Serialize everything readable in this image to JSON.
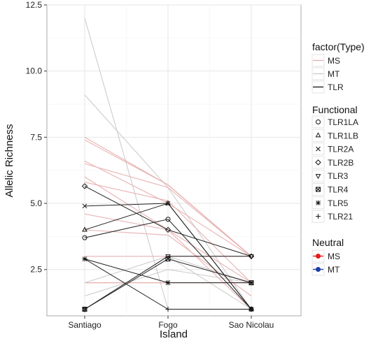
{
  "chart_data": {
    "type": "line",
    "xlabel": "Island",
    "ylabel": "Allelic Richness",
    "categories": [
      "Santiago",
      "Fogo",
      "Sao Nicolau"
    ],
    "ylim": [
      0.75,
      12.5
    ],
    "yticks": [
      2.5,
      5.0,
      7.5,
      10.0,
      12.5
    ],
    "ytick_labels": [
      "2.5",
      "5.0",
      "7.5",
      "10.0",
      "12.5"
    ],
    "grid": true,
    "legend_position": "right",
    "colors": {
      "MS": "#e8b0b0",
      "MS_strong": "#e06060",
      "MT": "#cccccc",
      "TLR": "#222222",
      "legend_MS": "#e41a1c",
      "legend_MT": "#1d3ea8"
    },
    "legend_type": {
      "title": "factor(Type)",
      "items": [
        "MS",
        "MT",
        "TLR"
      ]
    },
    "legend_functional": {
      "title": "Functional",
      "items": [
        {
          "label": "TLR1LA",
          "shape": "circle"
        },
        {
          "label": "TLR1LB",
          "shape": "triangle"
        },
        {
          "label": "TLR2A",
          "shape": "cross"
        },
        {
          "label": "TLR2B",
          "shape": "diamond"
        },
        {
          "label": "TLR3",
          "shape": "triangle-down"
        },
        {
          "label": "TLR4",
          "shape": "square-x"
        },
        {
          "label": "TLR5",
          "shape": "asterisk"
        },
        {
          "label": "TLR21",
          "shape": "plus"
        }
      ]
    },
    "legend_neutral": {
      "title": "Neutral",
      "items": [
        {
          "label": "MS",
          "color": "#e41a1c"
        },
        {
          "label": "MT",
          "color": "#1d3ea8"
        }
      ]
    },
    "neutral_series": [
      {
        "type": "MT",
        "values": [
          12.0,
          1.0,
          1.0
        ]
      },
      {
        "type": "MT",
        "values": [
          9.1,
          5.6,
          1.0
        ]
      },
      {
        "type": "MS",
        "values": [
          7.5,
          5.7,
          3.0
        ]
      },
      {
        "type": "MS",
        "values": [
          7.4,
          5.7,
          3.0
        ]
      },
      {
        "type": "MS",
        "values": [
          6.5,
          5.6,
          3.0
        ]
      },
      {
        "type": "MS",
        "values": [
          6.6,
          5.0,
          3.0
        ]
      },
      {
        "type": "MS",
        "values": [
          6.0,
          4.0,
          2.0
        ]
      },
      {
        "type": "MS",
        "values": [
          5.8,
          5.1,
          2.0
        ]
      },
      {
        "type": "MS",
        "values": [
          4.6,
          4.0,
          1.0
        ]
      },
      {
        "type": "MS",
        "values": [
          4.0,
          3.8,
          1.5
        ]
      },
      {
        "type": "MS",
        "values": [
          3.0,
          3.0,
          3.0
        ]
      },
      {
        "type": "MS",
        "values": [
          2.0,
          2.0,
          2.0
        ]
      },
      {
        "type": "MS",
        "values": [
          2.0,
          2.0,
          2.0
        ]
      },
      {
        "type": "MT",
        "values": [
          2.0,
          3.0,
          1.0
        ]
      },
      {
        "type": "MT",
        "values": [
          1.0,
          3.0,
          2.0
        ]
      },
      {
        "type": "MT",
        "values": [
          1.5,
          2.5,
          2.0
        ]
      }
    ],
    "tlr_series": [
      {
        "name": "TLR1LA",
        "shape": "circle",
        "values": [
          3.7,
          4.4,
          1.0
        ]
      },
      {
        "name": "TLR1LB",
        "shape": "triangle",
        "values": [
          4.0,
          5.0,
          1.0
        ]
      },
      {
        "name": "TLR2A",
        "shape": "cross",
        "values": [
          4.9,
          5.0,
          1.0
        ]
      },
      {
        "name": "TLR2B",
        "shape": "diamond",
        "values": [
          5.65,
          4.0,
          3.0
        ]
      },
      {
        "name": "TLR3",
        "shape": "triangle-down",
        "values": [
          1.0,
          3.0,
          3.0
        ]
      },
      {
        "name": "TLR4",
        "shape": "square-x",
        "values": [
          1.0,
          2.9,
          2.0
        ]
      },
      {
        "name": "TLR5",
        "shape": "asterisk",
        "values": [
          2.9,
          2.0,
          2.0
        ]
      },
      {
        "name": "TLR21",
        "shape": "plus",
        "values": [
          2.9,
          1.0,
          1.0
        ]
      }
    ]
  }
}
